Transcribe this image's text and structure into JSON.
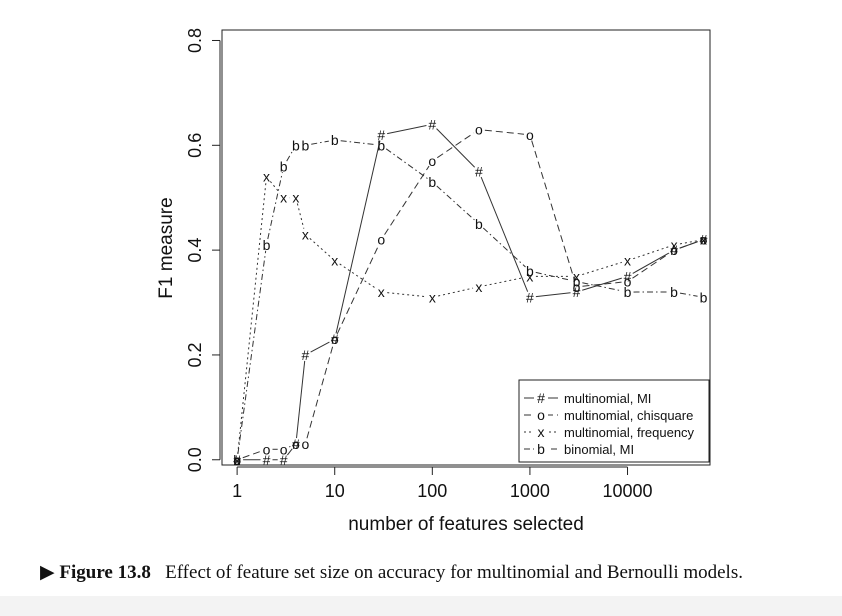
{
  "chart_data": {
    "type": "line",
    "xscale": "log",
    "xlabel": "number of features selected",
    "ylabel": "F1 measure",
    "xlim": [
      0.7,
      70000
    ],
    "ylim": [
      -0.01,
      0.82
    ],
    "xticks": [
      {
        "value": 1,
        "label": "1"
      },
      {
        "value": 10,
        "label": "10"
      },
      {
        "value": 100,
        "label": "100"
      },
      {
        "value": 1000,
        "label": "1000"
      },
      {
        "value": 10000,
        "label": "10000"
      }
    ],
    "yticks": [
      {
        "value": 0.0,
        "label": "0.0"
      },
      {
        "value": 0.2,
        "label": "0.2"
      },
      {
        "value": 0.4,
        "label": "0.4"
      },
      {
        "value": 0.6,
        "label": "0.6"
      },
      {
        "value": 0.8,
        "label": "0.8"
      }
    ],
    "legend_position": "bottom-right",
    "series": [
      {
        "name": "multinomial, MI",
        "marker": "#",
        "line": "solid",
        "x": [
          1,
          2,
          3,
          4,
          5,
          10,
          30,
          100,
          300,
          1000,
          3000,
          10000,
          30000,
          60000
        ],
        "y": [
          0.0,
          0.0,
          0.0,
          0.03,
          0.2,
          0.23,
          0.62,
          0.64,
          0.55,
          0.31,
          0.32,
          0.35,
          0.4,
          0.42
        ]
      },
      {
        "name": "multinomial, chisquare",
        "marker": "o",
        "line": "dashed",
        "x": [
          1,
          2,
          3,
          4,
          5,
          10,
          30,
          100,
          300,
          1000,
          3000,
          10000,
          30000,
          60000
        ],
        "y": [
          0.0,
          0.02,
          0.02,
          0.03,
          0.03,
          0.23,
          0.42,
          0.57,
          0.63,
          0.62,
          0.33,
          0.34,
          0.4,
          0.42
        ]
      },
      {
        "name": "multinomial, frequency",
        "marker": "x",
        "line": "dotted",
        "x": [
          1,
          2,
          3,
          4,
          5,
          10,
          30,
          100,
          300,
          1000,
          3000,
          10000,
          30000,
          60000
        ],
        "y": [
          0.0,
          0.54,
          0.5,
          0.5,
          0.43,
          0.38,
          0.32,
          0.31,
          0.33,
          0.35,
          0.35,
          0.38,
          0.41,
          0.42
        ]
      },
      {
        "name": "binomial, MI",
        "marker": "b",
        "line": "dotdash",
        "x": [
          1,
          2,
          3,
          4,
          5,
          10,
          30,
          100,
          300,
          1000,
          3000,
          10000,
          30000,
          60000
        ],
        "y": [
          0.0,
          0.41,
          0.56,
          0.6,
          0.6,
          0.61,
          0.6,
          0.53,
          0.45,
          0.36,
          0.34,
          0.32,
          0.32,
          0.31
        ]
      }
    ]
  },
  "caption": {
    "label": "▶ Figure 13.8",
    "text": "Effect of feature set size on accuracy for multinomial and Bernoulli models."
  }
}
